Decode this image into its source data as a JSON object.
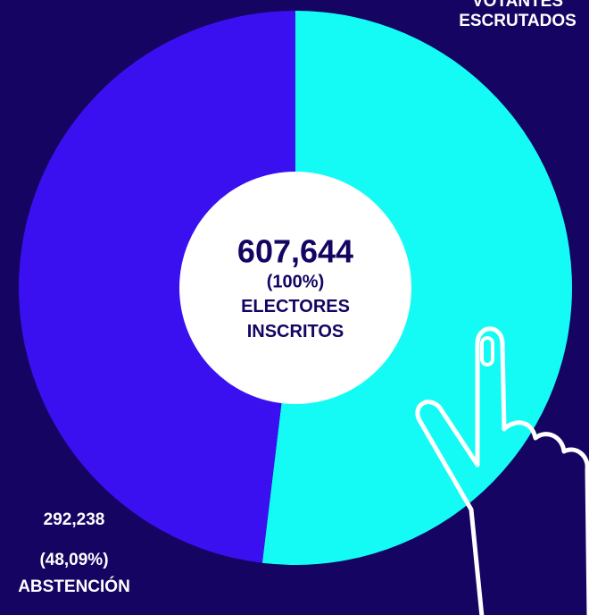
{
  "chart_data": {
    "type": "pie",
    "categories": [
      "VOTANTES ESCRUTADOS",
      "ABSTENCIÓN"
    ],
    "values": [
      51.91,
      48.09
    ],
    "value_labels": [
      null,
      "(48,09%)"
    ],
    "count_labels": [
      null,
      "292,238"
    ],
    "colors": [
      "#14fbf6",
      "#3a10f0"
    ],
    "center": {
      "value_label": "607,644",
      "percent_label": "(100%)",
      "label": "ELECTORES INSCRITOS"
    }
  }
}
